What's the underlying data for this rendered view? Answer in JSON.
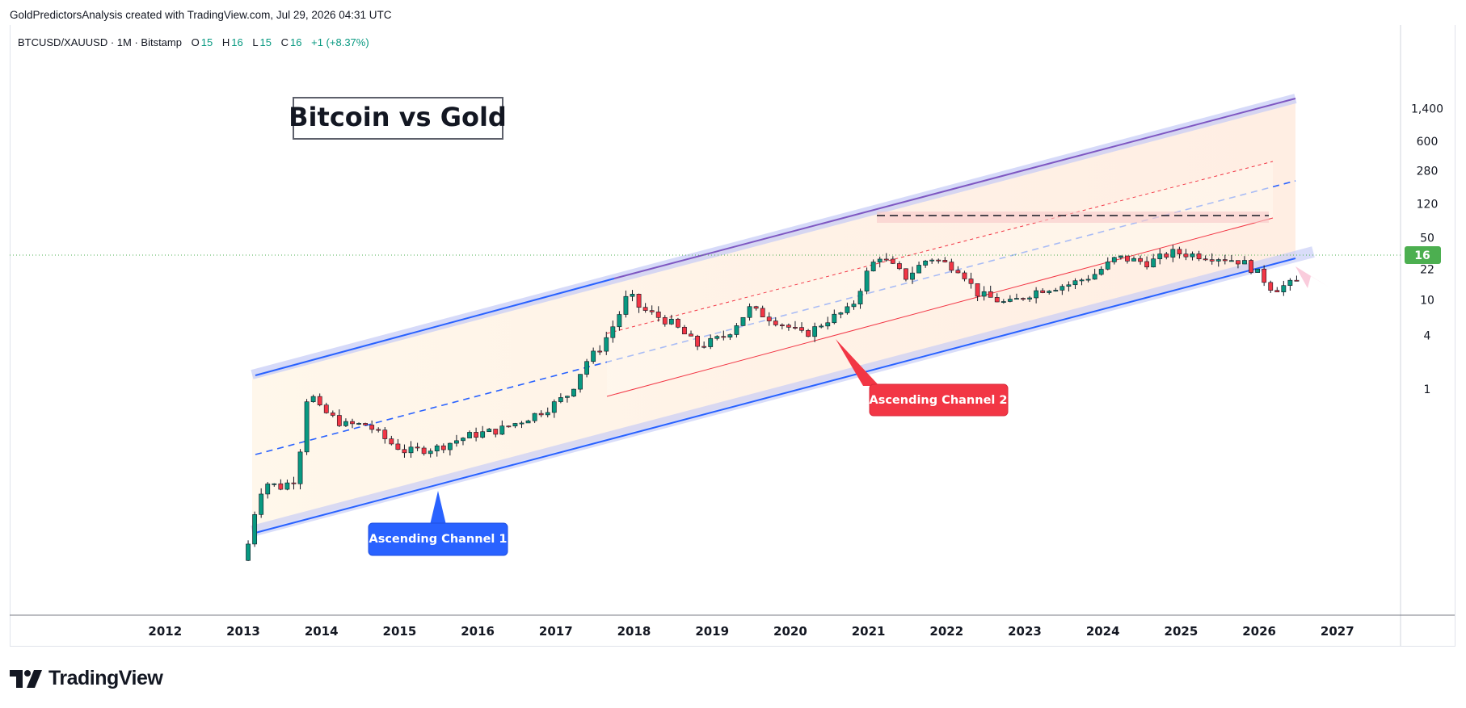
{
  "header": {
    "credit": "GoldPredictorsAnalysis created with TradingView.com, Jul 29, 2026 04:31 UTC"
  },
  "legend": {
    "symbol": "BTCUSD/XAUUSD · 1M · Bitstamp",
    "o_label": "O",
    "o_value": "15",
    "h_label": "H",
    "h_value": "16",
    "l_label": "L",
    "l_value": "15",
    "c_label": "C",
    "c_value": "16",
    "change": "+1 (+8.37%)"
  },
  "footer": {
    "brand": "TradingView"
  },
  "colors": {
    "up": "#089981",
    "down": "#f23645",
    "channel_blue": "#2962ff",
    "channel_red": "#f23645",
    "upper_line": "#7e57c2",
    "price_badge": "#4caf50"
  },
  "chart_data": {
    "type": "candlestick",
    "title": "Bitcoin vs Gold",
    "y_scale": "log",
    "y_ticks": [
      "1,400",
      "600",
      "280",
      "120",
      "50",
      "22",
      "10",
      "4",
      "1"
    ],
    "x_ticks": [
      "2012",
      "2013",
      "2014",
      "2015",
      "2016",
      "2017",
      "2018",
      "2019",
      "2020",
      "2021",
      "2022",
      "2023",
      "2024",
      "2025",
      "2026",
      "2027"
    ],
    "last_price": "16",
    "annotations": [
      "Ascending Channel 1",
      "Ascending Channel 2"
    ],
    "closes_approx": [
      {
        "t": 2013.0,
        "v": 0.012
      },
      {
        "t": 2013.1,
        "v": 0.02
      },
      {
        "t": 2013.2,
        "v": 0.06
      },
      {
        "t": 2013.3,
        "v": 0.09
      },
      {
        "t": 2013.5,
        "v": 0.08
      },
      {
        "t": 2013.7,
        "v": 0.1
      },
      {
        "t": 2013.85,
        "v": 1.0
      },
      {
        "t": 2014.0,
        "v": 0.6
      },
      {
        "t": 2014.3,
        "v": 0.4
      },
      {
        "t": 2014.6,
        "v": 0.4
      },
      {
        "t": 2014.9,
        "v": 0.25
      },
      {
        "t": 2015.1,
        "v": 0.2
      },
      {
        "t": 2015.5,
        "v": 0.22
      },
      {
        "t": 2015.9,
        "v": 0.3
      },
      {
        "t": 2016.3,
        "v": 0.35
      },
      {
        "t": 2016.6,
        "v": 0.45
      },
      {
        "t": 2016.9,
        "v": 0.6
      },
      {
        "t": 2017.2,
        "v": 0.9
      },
      {
        "t": 2017.4,
        "v": 2.0
      },
      {
        "t": 2017.6,
        "v": 3.0
      },
      {
        "t": 2017.8,
        "v": 6.0
      },
      {
        "t": 2017.95,
        "v": 12.0
      },
      {
        "t": 2018.1,
        "v": 8.0
      },
      {
        "t": 2018.5,
        "v": 5.5
      },
      {
        "t": 2018.85,
        "v": 3.0
      },
      {
        "t": 2019.2,
        "v": 4.0
      },
      {
        "t": 2019.5,
        "v": 8.0
      },
      {
        "t": 2019.9,
        "v": 5.5
      },
      {
        "t": 2020.2,
        "v": 4.0
      },
      {
        "t": 2020.5,
        "v": 6.0
      },
      {
        "t": 2020.8,
        "v": 8.0
      },
      {
        "t": 2021.0,
        "v": 20.0
      },
      {
        "t": 2021.15,
        "v": 32.0
      },
      {
        "t": 2021.5,
        "v": 18.0
      },
      {
        "t": 2021.8,
        "v": 30.0
      },
      {
        "t": 2022.2,
        "v": 22.0
      },
      {
        "t": 2022.4,
        "v": 12.0
      },
      {
        "t": 2022.8,
        "v": 9.0
      },
      {
        "t": 2023.2,
        "v": 13.0
      },
      {
        "t": 2023.6,
        "v": 15.0
      },
      {
        "t": 2023.9,
        "v": 19.0
      },
      {
        "t": 2024.2,
        "v": 30.0
      },
      {
        "t": 2024.6,
        "v": 26.0
      },
      {
        "t": 2024.9,
        "v": 34.0
      },
      {
        "t": 2025.2,
        "v": 32.0
      },
      {
        "t": 2025.5,
        "v": 30.0
      },
      {
        "t": 2025.8,
        "v": 27.0
      },
      {
        "t": 2026.0,
        "v": 20.0
      },
      {
        "t": 2026.2,
        "v": 13.0
      },
      {
        "t": 2026.4,
        "v": 15.0
      },
      {
        "t": 2026.55,
        "v": 16.0
      }
    ]
  }
}
